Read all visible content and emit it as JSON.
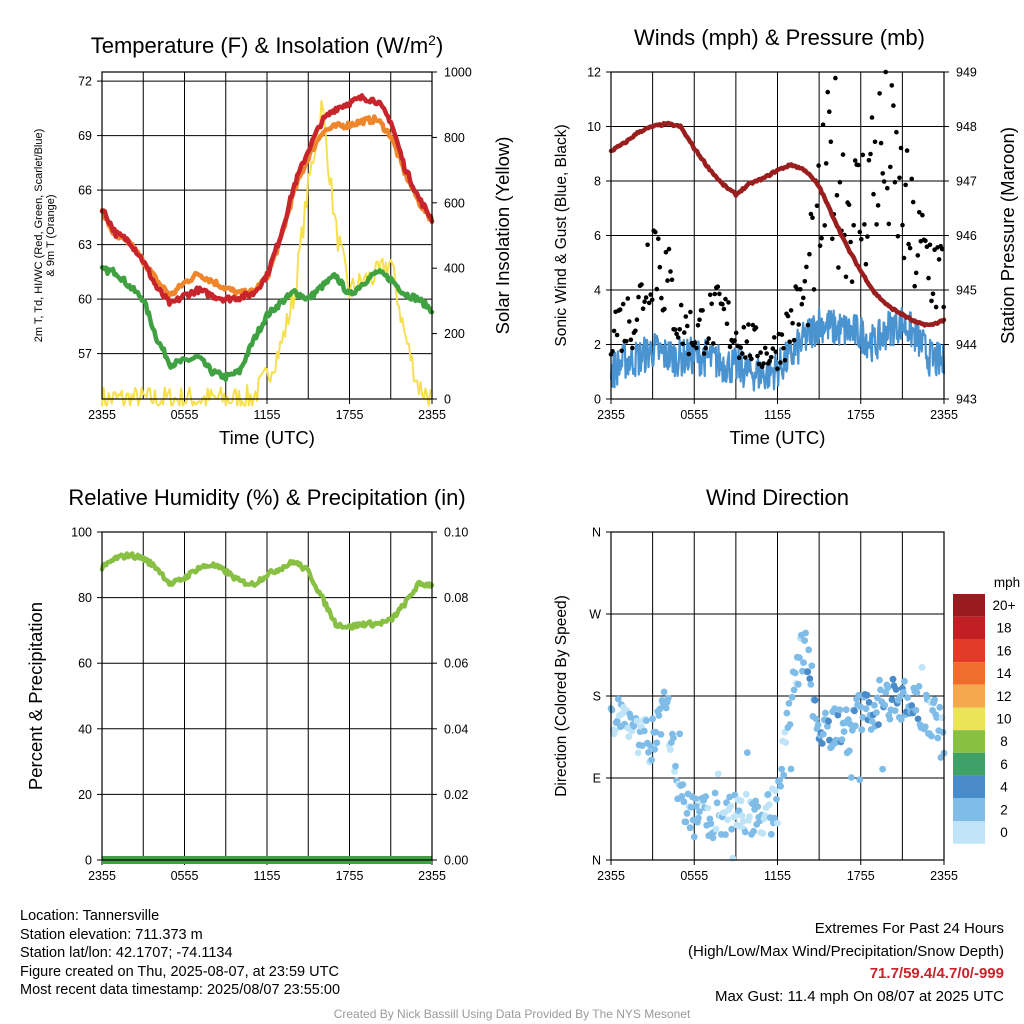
{
  "chart_data": [
    {
      "type": "line",
      "title": "Temperature (F) & Insolation (W/m²)",
      "xlabel": "Time (UTC)",
      "ylabel": "2m T, Td, HI/WC (Red, Green, Scarlet/Blue) & 9m T (Orange)",
      "ylabel_lines": [
        "2m T, Td, HI/WC (Red, Green, Scarlet/Blue)",
        "& 9m T (Orange)"
      ],
      "y2label": "Solar Insolation (Yellow)",
      "x_ticks": [
        "2355",
        "0555",
        "1155",
        "1755",
        "2355"
      ],
      "y_ticks": [
        57,
        60,
        63,
        66,
        69,
        72
      ],
      "y2_ticks": [
        0,
        200,
        400,
        600,
        800,
        1000
      ],
      "ylim": [
        54.5,
        72.5
      ],
      "y2lim": [
        0,
        1000
      ],
      "x": [
        0,
        1,
        2,
        3,
        4,
        5,
        6,
        7,
        8,
        9,
        10,
        11,
        12,
        13,
        14,
        15,
        16,
        17,
        18,
        19,
        20,
        21,
        22,
        23,
        24
      ],
      "series": [
        {
          "name": "2m T",
          "color": "#c8242b",
          "axis": "left",
          "values": [
            65.0,
            63.6,
            63.2,
            62.1,
            60.6,
            59.7,
            60.2,
            60.5,
            60.2,
            60.0,
            60.1,
            60.3,
            61.3,
            63.5,
            66.3,
            68.2,
            69.8,
            70.5,
            70.8,
            71.1,
            70.9,
            69.8,
            67.3,
            65.6,
            64.4
          ]
        },
        {
          "name": "9m T",
          "color": "#f0862b",
          "axis": "left",
          "values": [
            64.8,
            63.4,
            63.1,
            62.1,
            61.0,
            60.2,
            60.9,
            61.4,
            61.0,
            60.6,
            60.3,
            60.4,
            61.2,
            63.3,
            66.0,
            67.8,
            69.2,
            69.5,
            69.6,
            69.8,
            69.9,
            69.0,
            67.0,
            65.4,
            64.3
          ]
        },
        {
          "name": "Td",
          "color": "#3fa142",
          "axis": "left",
          "values": [
            61.6,
            61.5,
            60.7,
            60.0,
            57.8,
            56.4,
            56.6,
            56.8,
            56.0,
            55.7,
            56.0,
            57.7,
            59.1,
            59.8,
            60.4,
            60.0,
            60.7,
            61.3,
            60.2,
            60.9,
            61.5,
            61.1,
            60.3,
            60.0,
            59.4
          ]
        },
        {
          "name": "Solar Insolation",
          "color": "#f6e04f",
          "axis": "right",
          "values": [
            0,
            0,
            0,
            0,
            0,
            0,
            0,
            0,
            0,
            0,
            0,
            5,
            70,
            160,
            320,
            650,
            900,
            520,
            330,
            360,
            380,
            420,
            200,
            40,
            0
          ]
        }
      ]
    },
    {
      "type": "line",
      "title": "Winds (mph) & Pressure (mb)",
      "xlabel": "Time (UTC)",
      "ylabel": "Sonic Wind & Gust (Blue, Black)",
      "y2label": "Station Pressure (Maroon)",
      "x_ticks": [
        "2355",
        "0555",
        "1155",
        "1755",
        "2355"
      ],
      "y_ticks": [
        0,
        2,
        4,
        6,
        8,
        10,
        12
      ],
      "y2_ticks": [
        943,
        944,
        945,
        946,
        947,
        948,
        949
      ],
      "ylim": [
        0,
        12
      ],
      "y2lim": [
        943,
        949
      ],
      "x": [
        0,
        1,
        2,
        3,
        4,
        5,
        6,
        7,
        8,
        9,
        10,
        11,
        12,
        13,
        14,
        15,
        16,
        17,
        18,
        19,
        20,
        21,
        22,
        23,
        24
      ],
      "series": [
        {
          "name": "Sonic Wind",
          "color": "#4a93d1",
          "axis": "left",
          "values": [
            1.0,
            1.4,
            1.5,
            1.8,
            1.6,
            1.5,
            1.6,
            1.5,
            1.3,
            1.2,
            1.0,
            0.9,
            1.1,
            1.6,
            2.2,
            2.8,
            2.6,
            2.5,
            2.4,
            2.0,
            2.6,
            2.8,
            2.3,
            1.5,
            1.3
          ]
        },
        {
          "name": "Gust",
          "color": "#000000",
          "axis": "left",
          "values": [
            2.5,
            2.6,
            3.0,
            5.5,
            4.0,
            2.5,
            2.2,
            2.6,
            2.8,
            2.2,
            1.9,
            1.5,
            1.7,
            2.6,
            3.4,
            6.0,
            8.2,
            6.5,
            6.2,
            8.0,
            8.0,
            6.5,
            5.0,
            4.6,
            4.0
          ]
        },
        {
          "name": "Station Pressure",
          "color": "#9a1e1e",
          "axis": "right",
          "values": [
            947.55,
            947.7,
            947.9,
            948.0,
            948.05,
            948.0,
            947.6,
            947.25,
            946.95,
            946.75,
            946.95,
            947.05,
            947.2,
            947.3,
            947.2,
            946.9,
            946.35,
            945.8,
            945.35,
            944.95,
            944.7,
            944.55,
            944.4,
            944.35,
            944.45
          ]
        }
      ]
    },
    {
      "type": "line",
      "title": "Relative Humidity (%) & Precipitation (in)",
      "ylabel": "Percent & Precipitation",
      "x_ticks": [
        "2355",
        "0555",
        "1155",
        "1755",
        "2355"
      ],
      "y_ticks": [
        0,
        20,
        40,
        60,
        80,
        100
      ],
      "y2_ticks": [
        "0.00",
        "0.02",
        "0.04",
        "0.06",
        "0.08",
        "0.10"
      ],
      "ylim": [
        0,
        100
      ],
      "y2lim": [
        0,
        0.1
      ],
      "x": [
        0,
        1,
        2,
        3,
        4,
        5,
        6,
        7,
        8,
        9,
        10,
        11,
        12,
        13,
        14,
        15,
        16,
        17,
        18,
        19,
        20,
        21,
        22,
        23,
        24
      ],
      "series": [
        {
          "name": "Relative Humidity",
          "color": "#88c043",
          "axis": "left",
          "values": [
            89,
            92,
            93,
            92,
            89,
            84,
            86,
            89,
            90,
            88,
            85,
            84,
            87,
            89,
            91,
            88,
            80,
            72,
            71,
            72,
            72,
            73,
            78,
            84,
            84
          ]
        },
        {
          "name": "Precipitation",
          "color": "#3fa142",
          "axis": "right",
          "values": [
            0,
            0,
            0,
            0,
            0,
            0,
            0,
            0,
            0,
            0,
            0,
            0,
            0,
            0,
            0,
            0,
            0,
            0,
            0,
            0,
            0,
            0,
            0,
            0,
            0
          ]
        }
      ]
    },
    {
      "type": "scatter",
      "title": "Wind Direction",
      "ylabel": "Direction (Colored By Speed)",
      "x_ticks": [
        "2355",
        "0555",
        "1155",
        "1755",
        "2355"
      ],
      "y_ticks": [
        "N",
        "E",
        "S",
        "W",
        "N"
      ],
      "ylim": [
        0,
        360
      ],
      "legend_title": "mph",
      "legend_labels": [
        "0",
        "2",
        "4",
        "6",
        "8",
        "10",
        "12",
        "14",
        "16",
        "18",
        "20+"
      ],
      "legend_colors": [
        "#bfe4f7",
        "#7fbde8",
        "#4a8cc9",
        "#3fa167",
        "#88c043",
        "#ece458",
        "#f6a84c",
        "#ef6d2d",
        "#e23b2a",
        "#c21f25",
        "#9a1a1e"
      ],
      "x": [
        0,
        1,
        2,
        3,
        4,
        5,
        6,
        7,
        8,
        9,
        10,
        11,
        12,
        13,
        14,
        15,
        16,
        17,
        18,
        19,
        20,
        21,
        22,
        23,
        24
      ],
      "direction": [
        160,
        165,
        140,
        130,
        170,
        60,
        50,
        50,
        48,
        55,
        52,
        45,
        60,
        185,
        240,
        135,
        150,
        140,
        160,
        170,
        180,
        175,
        172,
        160,
        140
      ],
      "speed": [
        1.0,
        1.4,
        1.5,
        1.8,
        1.6,
        1.5,
        1.6,
        1.5,
        1.3,
        1.2,
        1.0,
        0.9,
        1.1,
        1.6,
        2.2,
        2.8,
        2.6,
        2.5,
        2.4,
        2.0,
        2.6,
        2.8,
        2.3,
        1.5,
        1.3
      ]
    }
  ],
  "station": {
    "location": "Location: Tannersville",
    "elevation": "Station elevation: 711.373 m",
    "latlon": "Station lat/lon: 42.1707; -74.1134",
    "created": "Figure created on Thu, 2025-08-07, at 23:59 UTC",
    "recent": "Most recent data timestamp: 2025/08/07 23:55:00"
  },
  "extremes": {
    "title": "Extremes For Past 24 Hours",
    "subtitle": "(High/Low/Max Wind/Precipitation/Snow Depth)",
    "values": "71.7/59.4/4.7/0/-999",
    "gust": "Max Gust: 11.4 mph On 08/07 at 2025 UTC"
  },
  "credit": "Created By Nick Bassill Using Data Provided By The NYS Mesonet"
}
